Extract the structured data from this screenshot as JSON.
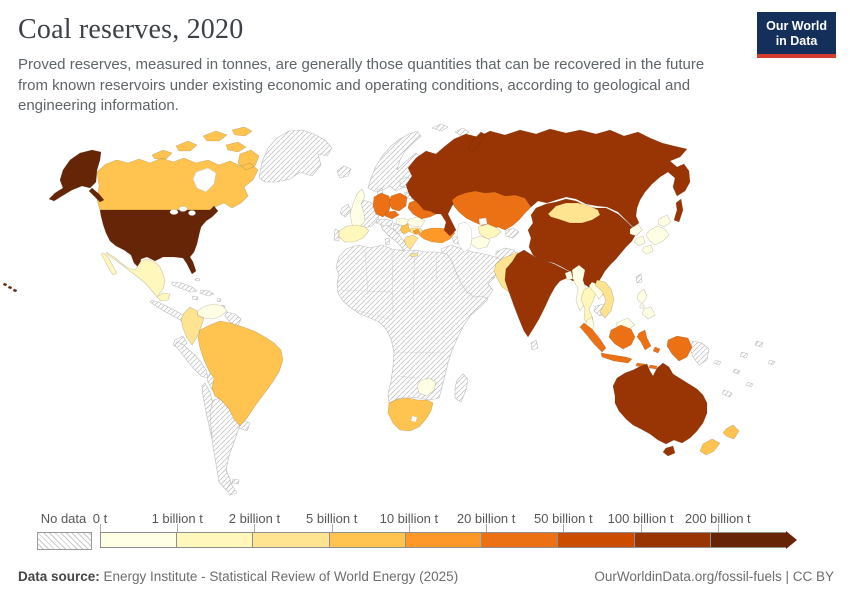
{
  "header": {
    "title": "Coal reserves, 2020",
    "subtitle": "Proved reserves, measured in tonnes, are generally those quantities that can be recovered in the future from known reservoirs under existing economic and operating conditions, according to geological and engineering information.",
    "logo": {
      "line1": "Our World",
      "line2": "in Data",
      "bg": "#14305a",
      "accent": "#d63b2f"
    }
  },
  "legend": {
    "no_data_label": "No data",
    "tick_labels": [
      "0 t",
      "1 billion t",
      "2 billion t",
      "5 billion t",
      "10 billion t",
      "20 billion t",
      "50 billion t",
      "100 billion t",
      "200 billion t"
    ],
    "colors": [
      "#ffffe5",
      "#fff7bc",
      "#fee391",
      "#fec44f",
      "#fe9929",
      "#ec7014",
      "#cc4c02",
      "#993404",
      "#662506"
    ]
  },
  "footer": {
    "source_label": "Data source:",
    "source_text": " Energy Institute - Statistical Review of World Energy (2025)",
    "right_text": "OurWorldinData.org/fossil-fuels | CC BY"
  },
  "chart_data": {
    "type": "choropleth_map",
    "title": "Coal reserves, 2020",
    "unit": "tonnes",
    "bins": [
      "0-1 billion t",
      "1-2 billion t",
      "2-5 billion t",
      "5-10 billion t",
      "10-20 billion t",
      "20-50 billion t",
      "50-100 billion t",
      "100-200 billion t",
      "200+ billion t"
    ],
    "countries": [
      {
        "id": "united-states",
        "name": "United States",
        "bin": 8
      },
      {
        "id": "russia",
        "name": "Russia",
        "bin": 7
      },
      {
        "id": "china",
        "name": "China",
        "bin": 7
      },
      {
        "id": "india",
        "name": "India",
        "bin": 7
      },
      {
        "id": "australia",
        "name": "Australia",
        "bin": 7
      },
      {
        "id": "germany",
        "name": "Germany",
        "bin": 5
      },
      {
        "id": "poland",
        "name": "Poland",
        "bin": 5
      },
      {
        "id": "czechia",
        "name": "Czechia",
        "bin": 5
      },
      {
        "id": "ukraine",
        "name": "Ukraine",
        "bin": 5
      },
      {
        "id": "kazakhstan",
        "name": "Kazakhstan",
        "bin": 5
      },
      {
        "id": "indonesia",
        "name": "Indonesia",
        "bin": 5
      },
      {
        "id": "turkey",
        "name": "Turkey",
        "bin": 4
      },
      {
        "id": "canada",
        "name": "Canada",
        "bin": 3
      },
      {
        "id": "brazil",
        "name": "Brazil",
        "bin": 3
      },
      {
        "id": "south-africa",
        "name": "South Africa",
        "bin": 3
      },
      {
        "id": "new-zealand",
        "name": "New Zealand",
        "bin": 3
      },
      {
        "id": "serbia",
        "name": "Serbia",
        "bin": 3
      },
      {
        "id": "colombia",
        "name": "Colombia",
        "bin": 2
      },
      {
        "id": "mongolia",
        "name": "Mongolia",
        "bin": 2
      },
      {
        "id": "pakistan",
        "name": "Pakistan",
        "bin": 2
      },
      {
        "id": "vietnam",
        "name": "Vietnam",
        "bin": 2
      },
      {
        "id": "greece",
        "name": "Greece",
        "bin": 2
      },
      {
        "id": "bulgaria",
        "name": "Bulgaria",
        "bin": 2
      },
      {
        "id": "mexico",
        "name": "Mexico",
        "bin": 1
      },
      {
        "id": "spain",
        "name": "Spain",
        "bin": 1
      },
      {
        "id": "uzbekistan",
        "name": "Uzbekistan",
        "bin": 1
      },
      {
        "id": "thailand",
        "name": "Thailand",
        "bin": 1
      },
      {
        "id": "united-kingdom",
        "name": "United Kingdom",
        "bin": 0
      },
      {
        "id": "venezuela",
        "name": "Venezuela",
        "bin": 0
      },
      {
        "id": "japan",
        "name": "Japan",
        "bin": 0
      },
      {
        "id": "north-korea",
        "name": "North Korea",
        "bin": 0
      },
      {
        "id": "south-korea",
        "name": "South Korea",
        "bin": 0
      },
      {
        "id": "zimbabwe",
        "name": "Zimbabwe",
        "bin": 0
      },
      {
        "id": "romania",
        "name": "Romania",
        "bin": 0
      },
      {
        "id": "hungary",
        "name": "Hungary",
        "bin": 0
      },
      {
        "id": "myanmar",
        "name": "Myanmar",
        "bin": 0
      },
      {
        "id": "laos",
        "name": "Laos",
        "bin": 0
      },
      {
        "id": "malaysia",
        "name": "Malaysia",
        "bin": 0
      },
      {
        "id": "philippines",
        "name": "Philippines",
        "bin": 0
      },
      {
        "id": "bangladesh",
        "name": "Bangladesh",
        "bin": 0
      },
      {
        "id": "turkmenistan",
        "name": "Turkmenistan",
        "bin": 0
      }
    ],
    "no_data_regions": [
      "Greenland",
      "Iceland",
      "Norway",
      "Sweden",
      "Finland",
      "Denmark",
      "Ireland",
      "Portugal",
      "France",
      "Italy",
      "Austria",
      "Switzerland",
      "Western Balkans",
      "Belarus",
      "Baltic states",
      "Caucasus",
      "Syria",
      "Iraq",
      "Saudi Arabia",
      "Iran",
      "Afghanistan",
      "Kyrgyzstan",
      "Tajikistan",
      "Nepal",
      "Sri Lanka",
      "Cambodia",
      "Taiwan",
      "Papua New Guinea",
      "Madagascar",
      "most of Africa",
      "Central America",
      "Cuba",
      "Caribbean islands",
      "Ecuador",
      "Peru",
      "Bolivia",
      "Paraguay",
      "Chile",
      "Argentina",
      "Uruguay",
      "Guyana",
      "Suriname",
      "Svalbard",
      "Pacific islands"
    ]
  }
}
